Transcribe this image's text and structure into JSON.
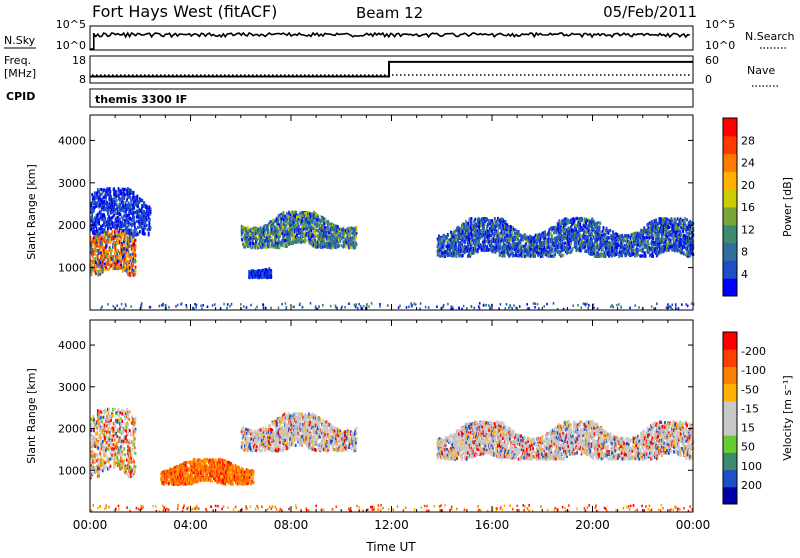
{
  "header": {
    "title": "Fort Hays West (fitACF)",
    "beam": "Beam 12",
    "date": "05/Feb/2011"
  },
  "top_panels": {
    "nsky_label": "N.Sky",
    "nsky_tick_top": "10^5",
    "nsky_tick_bottom": "10^0",
    "nsearch_label": "N.Search",
    "nsearch_tick_top": "10^5",
    "nsearch_tick_bottom": "10^0",
    "freq_label_1": "Freq.",
    "freq_label_2": "[MHz]",
    "freq_tick_top": "18",
    "freq_tick_bottom": "8",
    "nave_label": "Nave",
    "nave_tick_top": "60",
    "nave_tick_bottom": "0",
    "cpid_label": "CPID",
    "cpid_text": "themis 3300 IF"
  },
  "colors": {
    "power": [
      "#0000ff",
      "#1e4fc8",
      "#2f6e9e",
      "#3e8a6e",
      "#78a63a",
      "#cccc00",
      "#ffb000",
      "#ff7a00",
      "#ff3a00",
      "#ff0000"
    ],
    "velocity": [
      "#ff0000",
      "#ff4000",
      "#ff8000",
      "#ffb000",
      "#c8c8c8",
      "#c8c8c8",
      "#66cc33",
      "#3e8a6e",
      "#1e4fc8",
      "#0000aa"
    ],
    "ground": "#8a8a8a"
  },
  "chart_data": [
    {
      "type": "heatmap",
      "name": "power",
      "xlabel": "",
      "ylabel": "Slant Range [km]",
      "y_ticks": [
        "1000",
        "2000",
        "3000",
        "4000"
      ],
      "ylim": [
        0,
        4600
      ],
      "xlim": [
        0,
        24
      ],
      "x_unit": "hours UT",
      "colorbar_label": "Power [dB]",
      "colorbar_ticks": [
        "4",
        "8",
        "12",
        "16",
        "20",
        "24",
        "28"
      ],
      "colorbar_range": [
        0,
        30
      ],
      "features": [
        {
          "t0": 0.0,
          "t1": 1.8,
          "r0": 850,
          "r1": 1900,
          "level": "high"
        },
        {
          "t0": 0.0,
          "t1": 2.4,
          "r0": 1800,
          "r1": 2900,
          "level": "low"
        },
        {
          "t0": 6.0,
          "t1": 10.6,
          "r0": 1500,
          "r1": 2350,
          "level": "medium"
        },
        {
          "t0": 6.3,
          "t1": 7.2,
          "r0": 800,
          "r1": 1100,
          "level": "low"
        },
        {
          "t0": 13.8,
          "t1": 24.0,
          "r0": 1300,
          "r1": 2200,
          "level": "low-medium"
        }
      ]
    },
    {
      "type": "heatmap",
      "name": "velocity",
      "xlabel": "Time UT",
      "ylabel": "Slant Range [km]",
      "x_ticks": [
        "00:00",
        "04:00",
        "08:00",
        "12:00",
        "16:00",
        "20:00",
        "00:00"
      ],
      "y_ticks": [
        "1000",
        "2000",
        "3000",
        "4000"
      ],
      "ylim": [
        0,
        4600
      ],
      "xlim": [
        0,
        24
      ],
      "colorbar_label": "Velocity [m s⁻¹]",
      "colorbar_ticks": [
        "200",
        "100",
        "50",
        "15",
        "-15",
        "-50",
        "-100",
        "-200"
      ],
      "colorbar_range": [
        -250,
        250
      ],
      "features": [
        {
          "t0": 0.0,
          "t1": 1.8,
          "r0": 850,
          "r1": 2500,
          "level": "mixed"
        },
        {
          "t0": 2.8,
          "t1": 6.5,
          "r0": 700,
          "r1": 1300,
          "level": "negative"
        },
        {
          "t0": 6.0,
          "t1": 10.6,
          "r0": 1500,
          "r1": 2400,
          "level": "near-zero"
        },
        {
          "t0": 13.8,
          "t1": 24.0,
          "r0": 1300,
          "r1": 2200,
          "level": "near-zero"
        }
      ]
    },
    {
      "type": "line",
      "name": "frequency",
      "ylim": [
        8,
        18
      ],
      "series": [
        {
          "x": [
            0.0,
            11.9,
            11.9,
            24.0
          ],
          "values": [
            10.4,
            10.4,
            15.8,
            15.8
          ]
        }
      ]
    }
  ]
}
